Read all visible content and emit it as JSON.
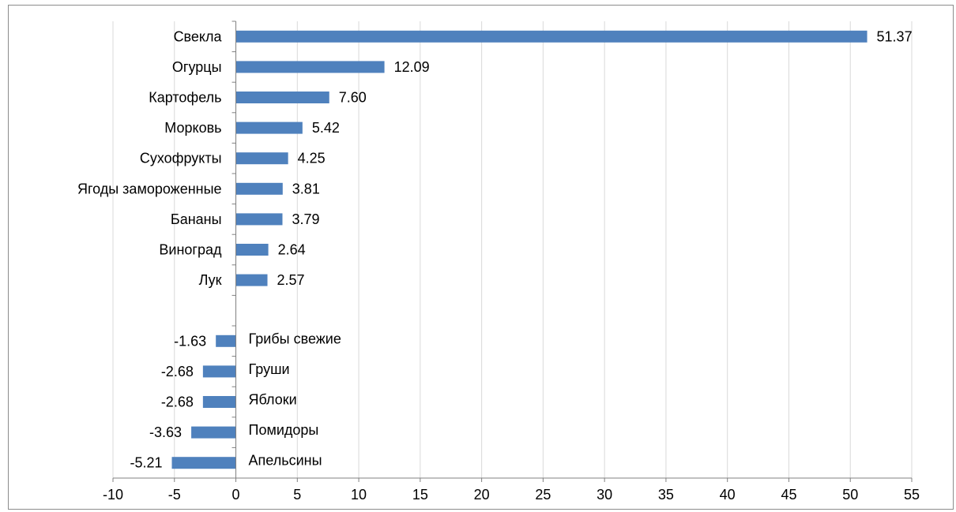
{
  "chart_data": {
    "type": "bar",
    "orientation": "horizontal",
    "categories": [
      "Свекла",
      "Огурцы",
      "Картофель",
      "Морковь",
      "Сухофрукты",
      "Ягоды замороженные",
      "Бананы",
      "Виноград",
      "Лук",
      "",
      "Грибы свежие",
      "Груши",
      "Яблоки",
      "Помидоры",
      "Апельсины"
    ],
    "values": [
      51.37,
      12.09,
      7.6,
      5.42,
      4.25,
      3.81,
      3.79,
      2.64,
      2.57,
      null,
      -1.63,
      -2.68,
      -2.68,
      -3.63,
      -5.21
    ],
    "value_labels": [
      "51.37",
      "12.09",
      "7.60",
      "5.42",
      "4.25",
      "3.81",
      "3.79",
      "2.64",
      "2.57",
      "",
      "-1.63",
      "-2.68",
      "-2.68",
      "-3.63",
      "-5.21"
    ],
    "xlim": [
      -10,
      55
    ],
    "xticks": [
      -10,
      -5,
      0,
      5,
      10,
      15,
      20,
      25,
      30,
      35,
      40,
      45,
      50,
      55
    ],
    "grid": "vertical",
    "bar_color": "#4f81bd",
    "title": "",
    "xlabel": "",
    "ylabel": ""
  }
}
